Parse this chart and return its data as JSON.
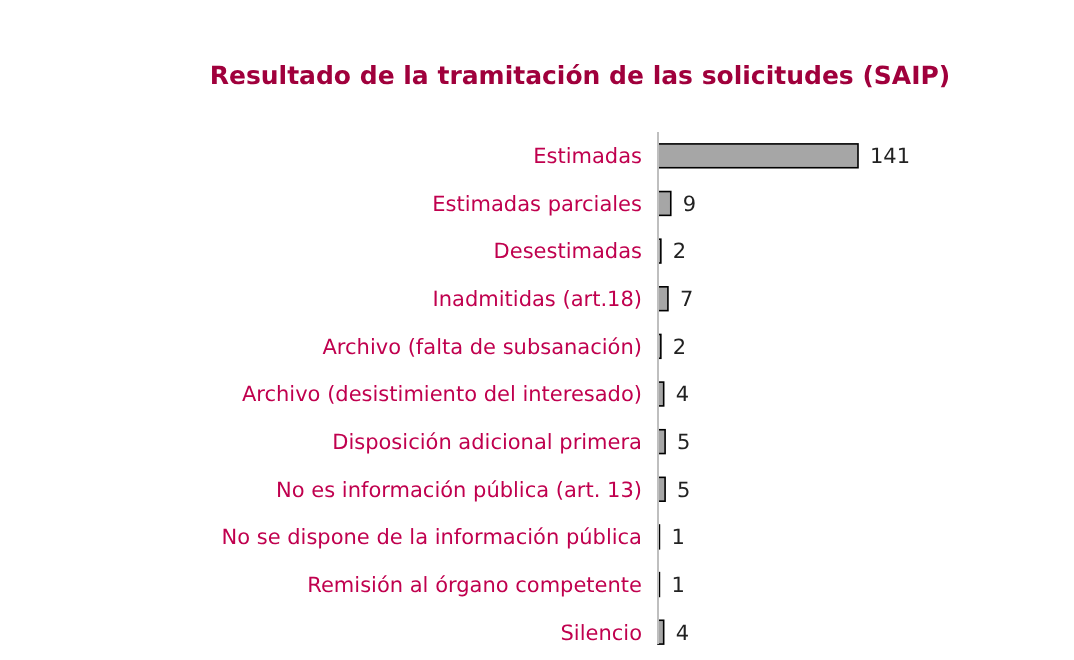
{
  "chart_data": {
    "type": "bar",
    "orientation": "horizontal",
    "title": "Resultado de la tramitación de las solicitudes (SAIP)",
    "categories": [
      "Estimadas",
      "Estimadas parciales",
      "Desestimadas",
      "Inadmitidas (art.18)",
      "Archivo (falta de subsanación)",
      "Archivo (desistimiento del interesado)",
      "Disposición adicional primera",
      "No es información pública  (art. 13)",
      "No se dispone de la información pública",
      "Remisión al órgano competente",
      "Silencio"
    ],
    "values": [
      141,
      9,
      2,
      7,
      2,
      4,
      5,
      5,
      1,
      1,
      4
    ],
    "color": "#a6a6a6",
    "data_labels": true
  }
}
